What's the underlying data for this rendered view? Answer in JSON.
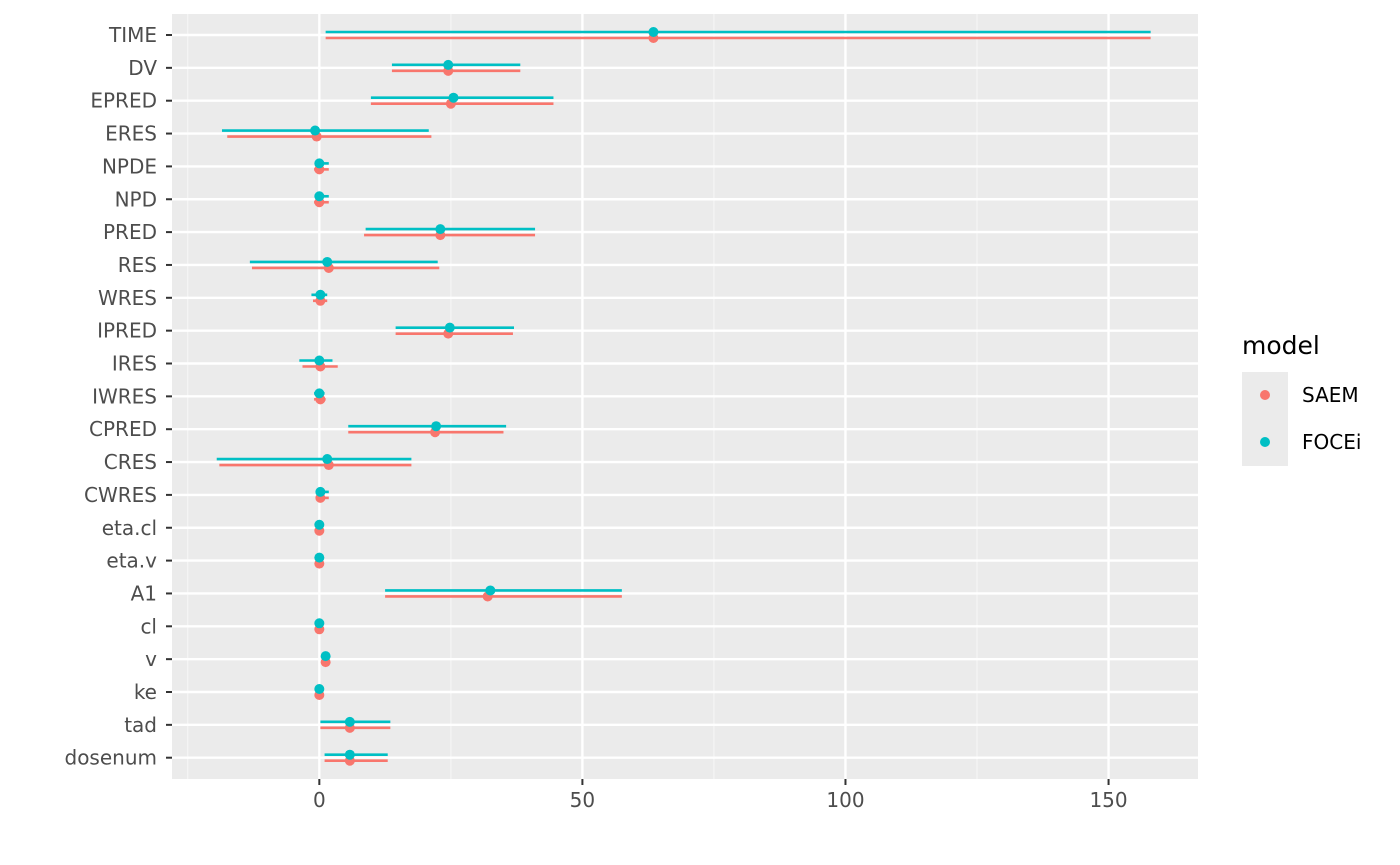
{
  "chart_data": {
    "type": "errorbar-dot",
    "orientation": "horizontal",
    "categories": [
      "TIME",
      "DV",
      "EPRED",
      "ERES",
      "NPDE",
      "NPD",
      "PRED",
      "RES",
      "WRES",
      "IPRED",
      "IRES",
      "IWRES",
      "CPRED",
      "CRES",
      "CWRES",
      "eta.cl",
      "eta.v",
      "A1",
      "cl",
      "v",
      "ke",
      "tad",
      "dosenum"
    ],
    "xlim": [
      -28,
      167
    ],
    "xticks": [
      0,
      50,
      100,
      150
    ],
    "xtick_labels": [
      "0",
      "50",
      "100",
      "150"
    ],
    "grid": true,
    "legend_position": "right",
    "legend_title": "model",
    "series": [
      {
        "name": "SAEM",
        "color": "#F8766D",
        "points": [
          {
            "est": 63.5,
            "lo": 1.2,
            "hi": 158
          },
          {
            "est": 24.5,
            "lo": 13.8,
            "hi": 38.2
          },
          {
            "est": 25.0,
            "lo": 9.8,
            "hi": 44.5
          },
          {
            "est": -0.5,
            "lo": -17.5,
            "hi": 21.3
          },
          {
            "est": 0.0,
            "lo": -1.0,
            "hi": 1.8
          },
          {
            "est": 0.0,
            "lo": -1.0,
            "hi": 1.8
          },
          {
            "est": 23.0,
            "lo": 8.5,
            "hi": 41.0
          },
          {
            "est": 1.8,
            "lo": -12.8,
            "hi": 22.8
          },
          {
            "est": 0.2,
            "lo": -1.2,
            "hi": 1.5
          },
          {
            "est": 24.5,
            "lo": 14.5,
            "hi": 36.8
          },
          {
            "est": 0.2,
            "lo": -3.2,
            "hi": 3.5
          },
          {
            "est": 0.2,
            "lo": -1.0,
            "hi": 1.2
          },
          {
            "est": 22.0,
            "lo": 5.5,
            "hi": 35.0
          },
          {
            "est": 1.8,
            "lo": -19.0,
            "hi": 17.5
          },
          {
            "est": 0.2,
            "lo": -0.5,
            "hi": 1.8
          },
          {
            "est": 0.0,
            "lo": 0.0,
            "hi": 0.0
          },
          {
            "est": 0.0,
            "lo": 0.0,
            "hi": 0.0
          },
          {
            "est": 32.0,
            "lo": 12.5,
            "hi": 57.5
          },
          {
            "est": 0.0,
            "lo": 0.0,
            "hi": 0.0
          },
          {
            "est": 1.2,
            "lo": 1.2,
            "hi": 1.2
          },
          {
            "est": 0.0,
            "lo": 0.0,
            "hi": 0.0
          },
          {
            "est": 5.8,
            "lo": 0.2,
            "hi": 13.5
          },
          {
            "est": 5.8,
            "lo": 1.0,
            "hi": 13.0
          }
        ]
      },
      {
        "name": "FOCEi",
        "color": "#00BFC4",
        "points": [
          {
            "est": 63.5,
            "lo": 1.2,
            "hi": 158
          },
          {
            "est": 24.5,
            "lo": 13.8,
            "hi": 38.2
          },
          {
            "est": 25.5,
            "lo": 9.8,
            "hi": 44.5
          },
          {
            "est": -0.8,
            "lo": -18.5,
            "hi": 20.8
          },
          {
            "est": 0.0,
            "lo": -0.8,
            "hi": 1.8
          },
          {
            "est": 0.0,
            "lo": -0.8,
            "hi": 1.8
          },
          {
            "est": 23.0,
            "lo": 8.8,
            "hi": 41.0
          },
          {
            "est": 1.5,
            "lo": -13.2,
            "hi": 22.5
          },
          {
            "est": 0.2,
            "lo": -1.5,
            "hi": 1.5
          },
          {
            "est": 24.8,
            "lo": 14.5,
            "hi": 37.0
          },
          {
            "est": 0.0,
            "lo": -3.8,
            "hi": 2.5
          },
          {
            "est": 0.0,
            "lo": -1.0,
            "hi": 1.0
          },
          {
            "est": 22.2,
            "lo": 5.5,
            "hi": 35.5
          },
          {
            "est": 1.5,
            "lo": -19.5,
            "hi": 17.5
          },
          {
            "est": 0.2,
            "lo": -0.5,
            "hi": 1.8
          },
          {
            "est": 0.0,
            "lo": 0.0,
            "hi": 0.0
          },
          {
            "est": 0.0,
            "lo": 0.0,
            "hi": 0.0
          },
          {
            "est": 32.5,
            "lo": 12.5,
            "hi": 57.5
          },
          {
            "est": 0.0,
            "lo": 0.0,
            "hi": 0.0
          },
          {
            "est": 1.2,
            "lo": 1.2,
            "hi": 1.2
          },
          {
            "est": 0.0,
            "lo": 0.0,
            "hi": 0.0
          },
          {
            "est": 5.8,
            "lo": 0.2,
            "hi": 13.5
          },
          {
            "est": 5.8,
            "lo": 1.0,
            "hi": 13.0
          }
        ]
      }
    ]
  }
}
